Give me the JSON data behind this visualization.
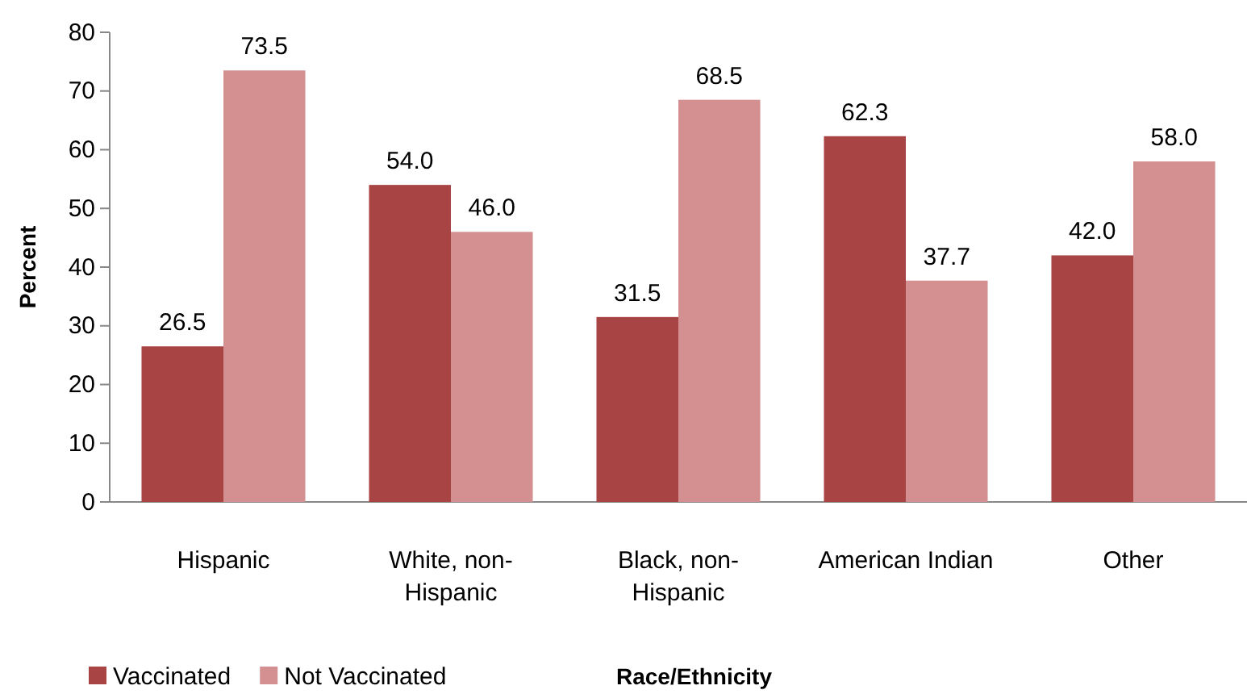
{
  "chart_data": {
    "type": "bar",
    "xlabel": "Race/Ethnicity",
    "ylabel": "Percent",
    "categories": [
      "Hispanic",
      "White, non-Hispanic",
      "Black, non-Hispanic",
      "American Indian",
      "Other"
    ],
    "series": [
      {
        "name": "Vaccinated",
        "color": "#a84444",
        "values": [
          26.5,
          54.0,
          31.5,
          62.3,
          42.0
        ],
        "value_labels": [
          "26.5",
          "54.0",
          "31.5",
          "62.3",
          "42.0"
        ]
      },
      {
        "name": "Not Vaccinated",
        "color": "#d49090",
        "values": [
          73.5,
          46.0,
          68.5,
          37.7,
          58.0
        ],
        "value_labels": [
          "73.5",
          "46.0",
          "68.5",
          "37.7",
          "58.0"
        ]
      }
    ],
    "ylim": [
      0,
      80
    ],
    "yticks": [
      0,
      10,
      20,
      30,
      40,
      50,
      60,
      70,
      80
    ],
    "grid": false,
    "legend": "bottom left"
  }
}
